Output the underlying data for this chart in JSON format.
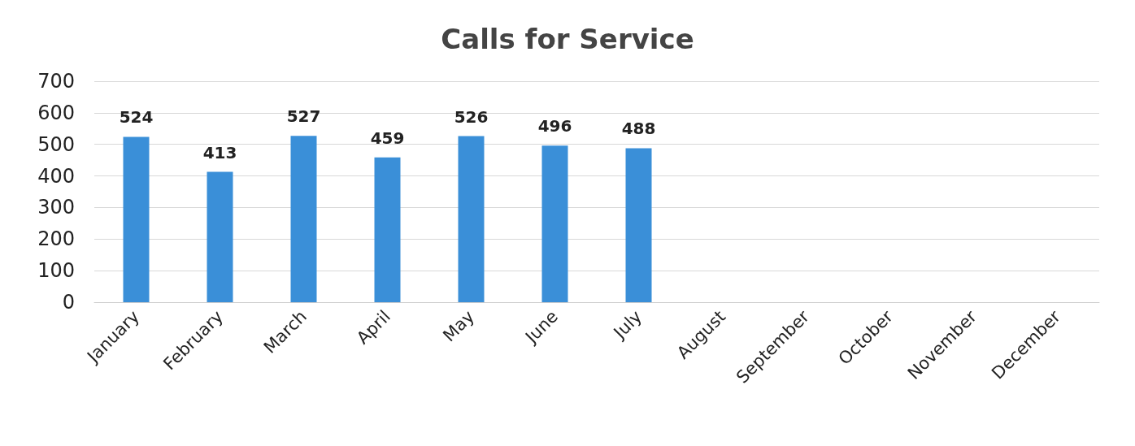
{
  "chart_data": {
    "type": "bar",
    "title": "Calls for Service",
    "categories": [
      "January",
      "February",
      "March",
      "April",
      "May",
      "June",
      "July",
      "August",
      "September",
      "October",
      "November",
      "December"
    ],
    "values": [
      524,
      413,
      527,
      459,
      526,
      496,
      488,
      null,
      null,
      null,
      null,
      null
    ],
    "color": "#3a8fd8",
    "ylim": [
      0,
      700
    ],
    "yticks": [
      0,
      100,
      200,
      300,
      400,
      500,
      600,
      700
    ],
    "grid": "y",
    "data_labels": true
  }
}
